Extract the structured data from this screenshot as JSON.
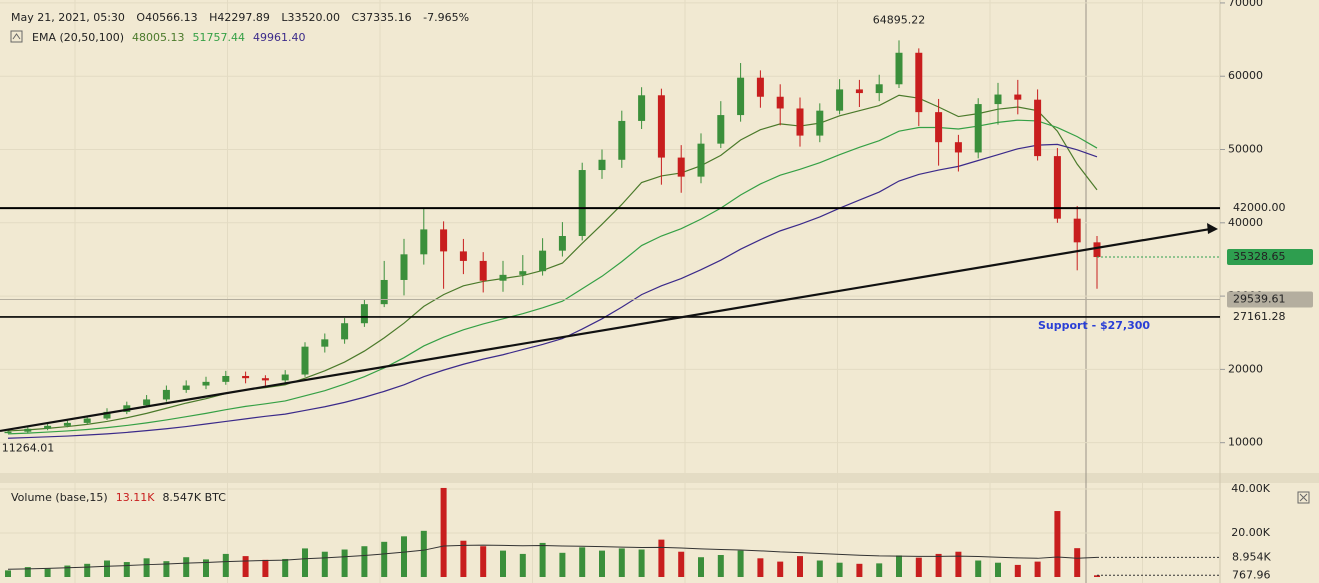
{
  "header": {
    "date": "May 21, 2021, 05:30",
    "open": "O40566.13",
    "high": "H42297.89",
    "low": "L33520.00",
    "close": "C37335.16",
    "change": "-7.965%"
  },
  "chart_data": [
    {
      "type": "candlestick",
      "legend": {
        "title": "EMA (20,50,100)",
        "values": [
          "48005.13",
          "51757.44",
          "49961.40"
        ]
      },
      "up_color": "#3b8f3b",
      "down_color": "#c81e1e",
      "open": [
        11300,
        11500,
        11900,
        12300,
        12700,
        13300,
        14200,
        15100,
        15900,
        17200,
        17800,
        18300,
        19100,
        18800,
        18500,
        19300,
        23100,
        24100,
        26300,
        28900,
        32200,
        35700,
        39100,
        36100,
        34800,
        32100,
        32900,
        33400,
        36200,
        38200,
        47200,
        48600,
        53900,
        57400,
        48900,
        46300,
        50800,
        54700,
        59800,
        57200,
        55600,
        51900,
        55300,
        58200,
        57700,
        58900,
        63200,
        55100,
        51000,
        49600,
        56200,
        57500,
        56800,
        49100,
        40566.13,
        37335.16
      ],
      "high": [
        11700,
        12200,
        12600,
        13000,
        13700,
        14700,
        15600,
        16500,
        17800,
        18500,
        19000,
        19800,
        19700,
        19200,
        19900,
        23700,
        24900,
        27000,
        29500,
        34800,
        37800,
        41900,
        40200,
        37800,
        36000,
        34800,
        35600,
        37900,
        40100,
        48200,
        50000,
        55300,
        58500,
        58300,
        50600,
        52200,
        56600,
        61800,
        60800,
        58900,
        57100,
        56300,
        59600,
        59500,
        60200,
        64895.22,
        63800,
        56900,
        52000,
        57000,
        59100,
        59500,
        58200,
        50200,
        42297.89,
        38200
      ],
      "low": [
        11264.01,
        11300,
        11700,
        12100,
        12500,
        13100,
        13900,
        14800,
        15600,
        16800,
        17300,
        17900,
        18100,
        17700,
        18100,
        19000,
        22300,
        23500,
        25800,
        28500,
        30100,
        34300,
        31000,
        33000,
        30500,
        30600,
        31500,
        32800,
        35400,
        37600,
        46000,
        47500,
        52800,
        45200,
        44100,
        45400,
        50200,
        53800,
        55700,
        53300,
        50400,
        51000,
        54800,
        55800,
        56600,
        58400,
        53200,
        47800,
        47000,
        48800,
        53400,
        54800,
        48500,
        40000,
        33520,
        31000
      ],
      "close": [
        11500,
        11900,
        12300,
        12700,
        13300,
        14200,
        15100,
        15900,
        17200,
        17800,
        18300,
        19100,
        18800,
        18500,
        19300,
        23100,
        24100,
        26300,
        28900,
        32200,
        35700,
        39100,
        36100,
        34800,
        32100,
        32900,
        33400,
        36200,
        38200,
        47200,
        48600,
        53900,
        57400,
        48900,
        46300,
        50800,
        54700,
        59800,
        57200,
        55600,
        51900,
        55300,
        58200,
        57700,
        58900,
        63200,
        55100,
        51000,
        49600,
        56200,
        57500,
        56800,
        49100,
        40566.13,
        37335.16,
        35328.65
      ],
      "series": [
        {
          "color": "#4b7a2b",
          "values": [
            11600,
            11750,
            11950,
            12200,
            12500,
            12900,
            13400,
            14000,
            14700,
            15400,
            16000,
            16700,
            17200,
            17500,
            17900,
            18800,
            19800,
            21000,
            22500,
            24300,
            26300,
            28600,
            30200,
            31400,
            32000,
            32400,
            32800,
            33500,
            34500,
            37200,
            39800,
            42500,
            45500,
            46400,
            46800,
            47800,
            49200,
            51300,
            52700,
            53500,
            53200,
            53600,
            54600,
            55300,
            56000,
            57400,
            57000,
            55800,
            54500,
            54900,
            55500,
            55800,
            55300,
            52500,
            48005.13,
            44500
          ]
        },
        {
          "color": "#35a045",
          "values": [
            11200,
            11300,
            11450,
            11600,
            11800,
            12050,
            12350,
            12700,
            13100,
            13550,
            14000,
            14500,
            14950,
            15300,
            15700,
            16400,
            17100,
            18000,
            19000,
            20200,
            21600,
            23200,
            24400,
            25400,
            26200,
            26900,
            27600,
            28400,
            29300,
            31000,
            32700,
            34700,
            36900,
            38200,
            39200,
            40500,
            42000,
            43800,
            45300,
            46500,
            47300,
            48200,
            49300,
            50300,
            51200,
            52500,
            53000,
            53000,
            52800,
            53200,
            53700,
            54000,
            53900,
            53000,
            51757.44,
            50200
          ]
        },
        {
          "color": "#3b2a8a",
          "values": [
            10600,
            10700,
            10800,
            10900,
            11050,
            11200,
            11400,
            11650,
            11900,
            12200,
            12550,
            12900,
            13250,
            13600,
            13900,
            14400,
            14900,
            15500,
            16200,
            17000,
            17900,
            19000,
            19900,
            20700,
            21400,
            22000,
            22700,
            23400,
            24200,
            25500,
            26900,
            28500,
            30200,
            31400,
            32400,
            33600,
            34900,
            36400,
            37700,
            38900,
            39800,
            40800,
            42000,
            43100,
            44200,
            45700,
            46600,
            47200,
            47700,
            48500,
            49300,
            50100,
            50600,
            50700,
            49961.4,
            49000
          ]
        }
      ],
      "ylim": [
        6000,
        70400
      ],
      "yticks": [
        10000,
        20000,
        30000,
        40000,
        50000,
        60000,
        70000
      ],
      "grid": true,
      "price_lines": [
        {
          "value": 42000,
          "label": "42000.00",
          "color": "#000000"
        },
        {
          "value": 27161.28,
          "label": "27161.28",
          "color": "#000000"
        },
        {
          "value": 29539.61,
          "label": "29539.61",
          "color": "#b4ae9f"
        },
        {
          "value": 35328.65,
          "label": "35328.65",
          "color": "#2e9e4f"
        }
      ],
      "annotations": [
        {
          "value": 64895.22,
          "label": "64895.22",
          "index": 45
        },
        {
          "value": 11264.01,
          "label": "11264.01",
          "index": 0
        }
      ],
      "trend_line": {
        "start": 11600,
        "end": 39150
      },
      "support": "Support - $27,300"
    },
    {
      "type": "bar",
      "title": "Volume (base,15)",
      "legend": [
        "13.11K",
        "8.547K BTC"
      ],
      "up_color": "#3b8f3b",
      "down_color": "#c81e1e",
      "values": [
        3000,
        4500,
        3800,
        5200,
        6000,
        7500,
        6800,
        8500,
        7200,
        9000,
        8000,
        10500,
        9500,
        7800,
        8200,
        13000,
        11500,
        12500,
        14000,
        16000,
        18500,
        21000,
        40500,
        16500,
        14000,
        12000,
        10500,
        15500,
        11000,
        13500,
        12000,
        13000,
        12500,
        17000,
        11500,
        9000,
        10000,
        12000,
        8500,
        7000,
        9500,
        7500,
        6500,
        6000,
        6200,
        9800,
        8800,
        10500,
        11500,
        7500,
        6500,
        5500,
        7000,
        30000,
        13110,
        767.96
      ],
      "ma": {
        "color": "#333333",
        "values": [
          3500,
          3700,
          3900,
          4200,
          4500,
          4900,
          5200,
          5600,
          5900,
          6300,
          6600,
          7000,
          7300,
          7500,
          7700,
          8300,
          8700,
          9200,
          9800,
          10500,
          11300,
          12200,
          14100,
          14400,
          14500,
          14400,
          14200,
          14300,
          14100,
          14000,
          13800,
          13600,
          13400,
          13500,
          13200,
          12800,
          12500,
          12300,
          11900,
          11400,
          11100,
          10700,
          10300,
          9900,
          9600,
          9500,
          9400,
          9400,
          9500,
          9300,
          9000,
          8700,
          8500,
          9100,
          8547,
          8954
        ]
      },
      "ylim": [
        0,
        42300
      ],
      "yticks": [
        {
          "value": 40000,
          "label": "40.00K"
        },
        {
          "value": 20000,
          "label": "20.00K"
        }
      ],
      "price_lines": [
        {
          "value": 8954,
          "label": "8.954K"
        },
        {
          "value": 767.96,
          "label": "767.96"
        }
      ]
    }
  ]
}
